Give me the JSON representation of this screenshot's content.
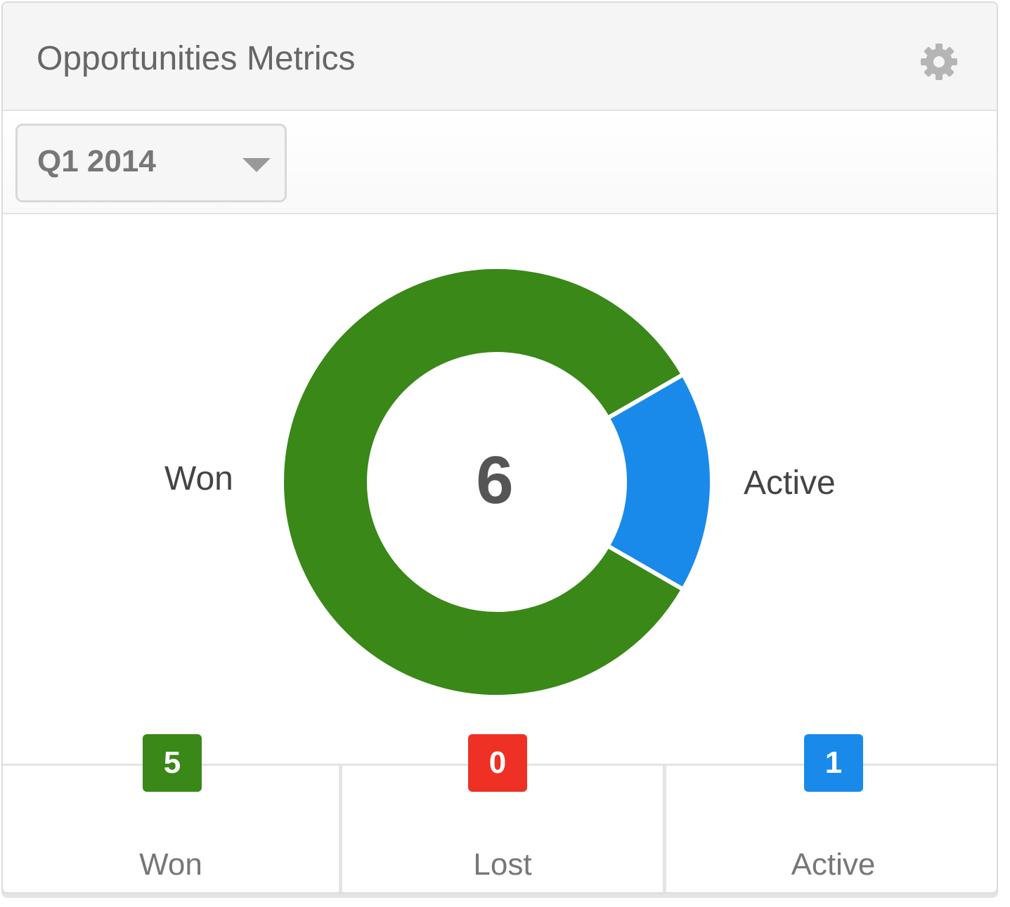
{
  "widget": {
    "title": "Opportunities Metrics",
    "settings_icon": "gear-icon"
  },
  "period_select": {
    "value": "Q1 2014",
    "icon": "chevron-down-icon"
  },
  "colors": {
    "won": "#398818",
    "lost": "#ee3124",
    "active": "#1a8aea"
  },
  "chart_data": {
    "type": "pie",
    "donut": true,
    "center_value": "6",
    "slices": [
      {
        "label": "Won",
        "value": 5,
        "color": "#398818"
      },
      {
        "label": "Lost",
        "value": 0,
        "color": "#ee3124"
      },
      {
        "label": "Active",
        "value": 1,
        "color": "#1a8aea"
      }
    ]
  },
  "stats": [
    {
      "label": "Won",
      "count": "5",
      "color": "#398818"
    },
    {
      "label": "Lost",
      "count": "0",
      "color": "#ee3124"
    },
    {
      "label": "Active",
      "count": "1",
      "color": "#1a8aea"
    }
  ]
}
